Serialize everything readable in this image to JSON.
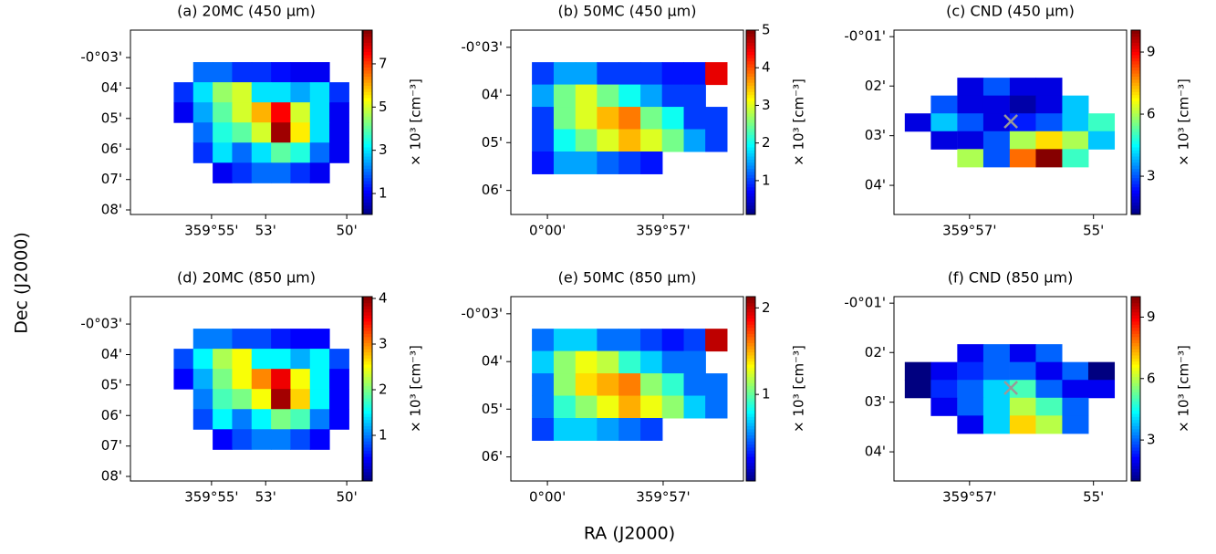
{
  "figure": {
    "xlabel": "RA (J2000)",
    "ylabel": "Dec (J2000)"
  },
  "chart_data": [
    {
      "type": "heatmap",
      "title": "(a) 20MC (450 μm)",
      "colormap": "jet",
      "xlim": [
        359.9667,
        359.8238
      ],
      "ylim": [
        -0.1358,
        -0.035
      ],
      "xticks": [
        {
          "value": 359.9167,
          "label": "359°55'"
        },
        {
          "value": 359.8833,
          "label": "53'"
        },
        {
          "value": 359.8333,
          "label": "50'"
        }
      ],
      "yticks": [
        {
          "value": -0.05,
          "label": "-0°03'"
        },
        {
          "value": -0.0667,
          "label": "04'"
        },
        {
          "value": -0.0833,
          "label": "05'"
        },
        {
          "value": -0.1,
          "label": "06'"
        },
        {
          "value": -0.1167,
          "label": "07'"
        },
        {
          "value": -0.1333,
          "label": "08'"
        }
      ],
      "x": [
        359.934,
        359.922,
        359.91,
        359.898,
        359.886,
        359.874,
        359.862,
        359.85,
        359.838
      ],
      "y": [
        -0.058,
        -0.069,
        -0.08,
        -0.091,
        -0.102,
        -0.113
      ],
      "z": [
        [
          null,
          2,
          2,
          1.5,
          1.5,
          1.2,
          1,
          1,
          null
        ],
        [
          1.5,
          3,
          4.5,
          5,
          3,
          3,
          2.5,
          3,
          1.5
        ],
        [
          1,
          2.5,
          4,
          5,
          6,
          7.5,
          5,
          3,
          1
        ],
        [
          null,
          2,
          3.5,
          4,
          5,
          8.3,
          5.5,
          3,
          1
        ],
        [
          null,
          1.5,
          3,
          2,
          3,
          4,
          3.5,
          2,
          1
        ],
        [
          null,
          null,
          1,
          1.5,
          2,
          2,
          1.5,
          1,
          null
        ]
      ],
      "clim": [
        0.03,
        8.56
      ],
      "cticks": [
        1,
        3,
        5,
        7
      ],
      "clabel": "× 10³ [cm⁻³]"
    },
    {
      "type": "heatmap",
      "title": "(b) 50MC (450 μm)",
      "colormap": "jet",
      "xlim": [
        360.0158,
        359.9153
      ],
      "ylim": [
        -0.1084,
        -0.044
      ],
      "xticks": [
        {
          "value": 360.0,
          "label": "0°00'"
        },
        {
          "value": 359.95,
          "label": "359°57'"
        }
      ],
      "yticks": [
        {
          "value": -0.05,
          "label": "-0°03'"
        },
        {
          "value": -0.0667,
          "label": "04'"
        },
        {
          "value": -0.0833,
          "label": "05'"
        },
        {
          "value": -0.1,
          "label": "06'"
        }
      ],
      "x": [
        360.002,
        359.9926,
        359.9832,
        359.9739,
        359.9645,
        359.9551,
        359.9458,
        359.9364,
        359.9271
      ],
      "y": [
        -0.0591,
        -0.0669,
        -0.0747,
        -0.0825,
        -0.0903
      ],
      "z": [
        [
          1,
          1.5,
          1.5,
          1,
          1,
          1,
          0.8,
          0.8,
          4.5
        ],
        [
          1.5,
          2.5,
          3,
          2.5,
          2,
          1.5,
          1,
          1,
          null
        ],
        [
          1,
          2.5,
          3,
          3.5,
          3.8,
          2.5,
          2,
          1,
          1
        ],
        [
          1,
          2,
          2.5,
          3,
          3.5,
          3,
          2.5,
          1.5,
          1
        ],
        [
          0.8,
          1.5,
          1.5,
          1.2,
          1,
          0.8,
          null,
          null,
          null
        ]
      ],
      "clim": [
        0.1,
        5
      ],
      "cticks": [
        1,
        2,
        3,
        4,
        5
      ],
      "clabel": "× 10³ [cm⁻³]"
    },
    {
      "type": "heatmap",
      "title": "(c) CND (450 μm)",
      "colormap": "jet",
      "xlim": [
        359.9703,
        359.9078
      ],
      "ylim": [
        -0.0765,
        -0.0145
      ],
      "xticks": [
        {
          "value": 359.95,
          "label": "359°57'"
        },
        {
          "value": 359.9167,
          "label": "55'"
        }
      ],
      "yticks": [
        {
          "value": -0.0167,
          "label": "-0°01'"
        },
        {
          "value": -0.0333,
          "label": "02'"
        },
        {
          "value": -0.05,
          "label": "03'"
        },
        {
          "value": -0.0667,
          "label": "04'"
        }
      ],
      "x": [
        359.9639,
        359.9569,
        359.9498,
        359.9428,
        359.9357,
        359.9287,
        359.9216,
        359.9146
      ],
      "y": [
        -0.0335,
        -0.0395,
        -0.0455,
        -0.0515,
        -0.0575
      ],
      "z": [
        [
          null,
          null,
          2,
          3,
          2,
          2,
          null,
          null
        ],
        [
          null,
          3,
          2,
          2,
          1.5,
          2,
          4,
          null
        ],
        [
          2,
          4,
          3,
          2,
          2.5,
          3,
          4,
          5
        ],
        [
          null,
          2,
          2,
          3,
          6,
          7,
          6,
          4
        ],
        [
          null,
          null,
          6,
          3,
          8,
          10,
          5,
          null
        ]
      ],
      "markers": [
        {
          "x": 359.9389,
          "y": -0.0452
        }
      ],
      "clim": [
        1.15,
        10.06
      ],
      "cticks": [
        3,
        6,
        9
      ],
      "clabel": "× 10³ [cm⁻³]"
    },
    {
      "type": "heatmap",
      "title": "(d) 20MC (850 μm)",
      "colormap": "jet",
      "xlim": [
        359.9667,
        359.8238
      ],
      "ylim": [
        -0.1358,
        -0.035
      ],
      "xticks": [
        {
          "value": 359.9167,
          "label": "359°55'"
        },
        {
          "value": 359.8833,
          "label": "53'"
        },
        {
          "value": 359.8333,
          "label": "50'"
        }
      ],
      "yticks": [
        {
          "value": -0.05,
          "label": "-0°03'"
        },
        {
          "value": -0.0667,
          "label": "04'"
        },
        {
          "value": -0.0833,
          "label": "05'"
        },
        {
          "value": -0.1,
          "label": "06'"
        },
        {
          "value": -0.1167,
          "label": "07'"
        },
        {
          "value": -0.1333,
          "label": "08'"
        }
      ],
      "x": [
        359.934,
        359.922,
        359.91,
        359.898,
        359.886,
        359.874,
        359.862,
        359.85,
        359.838
      ],
      "y": [
        -0.058,
        -0.069,
        -0.08,
        -0.091,
        -0.102,
        -0.113
      ],
      "z": [
        [
          null,
          1,
          1,
          0.8,
          0.8,
          0.6,
          0.5,
          0.5,
          null
        ],
        [
          0.8,
          1.5,
          2.2,
          2.5,
          1.5,
          1.5,
          1.2,
          1.5,
          0.8
        ],
        [
          0.5,
          1.2,
          2,
          2.5,
          3,
          3.6,
          2.5,
          1.5,
          0.5
        ],
        [
          null,
          1,
          1.8,
          2,
          2.5,
          3.9,
          2.7,
          1.5,
          0.5
        ],
        [
          null,
          0.8,
          1.5,
          1,
          1.5,
          2,
          1.8,
          1,
          0.5
        ],
        [
          null,
          null,
          0.5,
          0.8,
          1,
          1,
          0.8,
          0.5,
          null
        ]
      ],
      "clim": [
        0,
        4.04
      ],
      "cticks": [
        1,
        2,
        3,
        4
      ],
      "clabel": "× 10³ [cm⁻³]"
    },
    {
      "type": "heatmap",
      "title": "(e) 50MC (850 μm)",
      "colormap": "jet",
      "xlim": [
        360.0158,
        359.9153
      ],
      "ylim": [
        -0.1084,
        -0.044
      ],
      "xticks": [
        {
          "value": 360.0,
          "label": "0°00'"
        },
        {
          "value": 359.95,
          "label": "359°57'"
        }
      ],
      "yticks": [
        {
          "value": -0.05,
          "label": "-0°03'"
        },
        {
          "value": -0.0667,
          "label": "04'"
        },
        {
          "value": -0.0833,
          "label": "05'"
        },
        {
          "value": -0.1,
          "label": "06'"
        }
      ],
      "x": [
        360.002,
        359.9926,
        359.9832,
        359.9739,
        359.9645,
        359.9551,
        359.9458,
        359.9364,
        359.9271
      ],
      "y": [
        -0.0591,
        -0.0669,
        -0.0747,
        -0.0825,
        -0.0903
      ],
      "z": [
        [
          0.5,
          0.7,
          0.7,
          0.5,
          0.5,
          0.4,
          0.3,
          0.4,
          2.0
        ],
        [
          0.7,
          1.1,
          1.3,
          1.2,
          0.9,
          0.7,
          0.5,
          0.5,
          null
        ],
        [
          0.5,
          1.1,
          1.4,
          1.5,
          1.6,
          1.1,
          0.9,
          0.5,
          0.5
        ],
        [
          0.5,
          0.9,
          1.1,
          1.3,
          1.5,
          1.3,
          1.1,
          0.7,
          0.5
        ],
        [
          0.4,
          0.7,
          0.7,
          0.6,
          0.5,
          0.4,
          null,
          null,
          null
        ]
      ],
      "clim": [
        0,
        2.13
      ],
      "cticks": [
        1,
        2
      ],
      "clabel": "× 10³ [cm⁻³]"
    },
    {
      "type": "heatmap",
      "title": "(f) CND (850 μm)",
      "colormap": "jet",
      "xlim": [
        359.9703,
        359.9078
      ],
      "ylim": [
        -0.0765,
        -0.0145
      ],
      "xticks": [
        {
          "value": 359.95,
          "label": "359°57'"
        },
        {
          "value": 359.9167,
          "label": "55'"
        }
      ],
      "yticks": [
        {
          "value": -0.0167,
          "label": "-0°01'"
        },
        {
          "value": -0.0333,
          "label": "02'"
        },
        {
          "value": -0.05,
          "label": "03'"
        },
        {
          "value": -0.0667,
          "label": "04'"
        }
      ],
      "x": [
        359.9639,
        359.9569,
        359.9498,
        359.9428,
        359.9357,
        359.9287,
        359.9216,
        359.9146
      ],
      "y": [
        -0.0335,
        -0.0395,
        -0.0455,
        -0.0515,
        -0.0575
      ],
      "z": [
        [
          null,
          null,
          2,
          3,
          2,
          3,
          null,
          null
        ],
        [
          1,
          2,
          2.5,
          3,
          3,
          2,
          3,
          1
        ],
        [
          1,
          2.5,
          3,
          4,
          5,
          3,
          2,
          2
        ],
        [
          null,
          2,
          3,
          4,
          6,
          5,
          3,
          null
        ],
        [
          null,
          null,
          2,
          4,
          7,
          6,
          3,
          null
        ]
      ],
      "markers": [
        {
          "x": 359.9389,
          "y": -0.0452
        }
      ],
      "clim": [
        1,
        10
      ],
      "cticks": [
        3,
        6,
        9
      ],
      "clabel": "× 10³ [cm⁻³]"
    }
  ]
}
